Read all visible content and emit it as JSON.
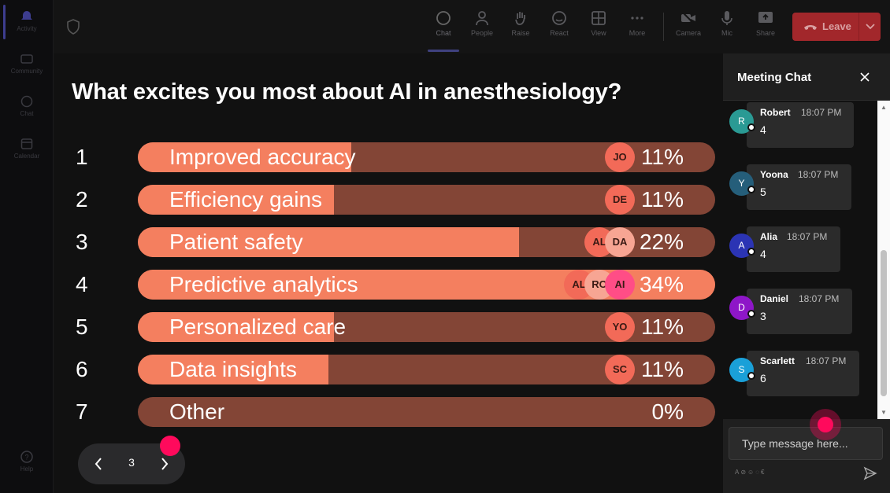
{
  "rail": {
    "items": [
      {
        "label": "Activity",
        "icon": "bell-icon"
      },
      {
        "label": "Community",
        "icon": "community-icon"
      },
      {
        "label": "Chat",
        "icon": "chat-icon"
      },
      {
        "label": "Calendar",
        "icon": "calendar-icon"
      }
    ],
    "help": {
      "label": "Help",
      "icon": "help-icon"
    }
  },
  "toolbar": {
    "chat": "Chat",
    "people": "People",
    "raise": "Raise",
    "react": "React",
    "view": "View",
    "more": "More",
    "camera": "Camera",
    "mic": "Mic",
    "share": "Share",
    "leave": "Leave"
  },
  "poll": {
    "question": "What excites you most about AI in anesthesiology?",
    "options": [
      {
        "num": "1",
        "label": "Improved accuracy",
        "fill": 0.37,
        "pct": "11%",
        "voters": [
          "JO"
        ]
      },
      {
        "num": "2",
        "label": "Efficiency gains",
        "fill": 0.34,
        "pct": "11%",
        "voters": [
          "DE"
        ]
      },
      {
        "num": "3",
        "label": "Patient safety",
        "fill": 0.66,
        "pct": "22%",
        "voters": [
          "AL",
          "DA"
        ]
      },
      {
        "num": "4",
        "label": "Predictive analytics",
        "fill": 1.0,
        "pct": "34%",
        "voters": [
          "AL",
          "RO",
          "AI"
        ]
      },
      {
        "num": "5",
        "label": "Personalized care",
        "fill": 0.34,
        "pct": "11%",
        "voters": [
          "YO"
        ]
      },
      {
        "num": "6",
        "label": "Data insights",
        "fill": 0.33,
        "pct": "11%",
        "voters": [
          "SC"
        ]
      },
      {
        "num": "7",
        "label": "Other",
        "fill": 0.0,
        "pct": "0%",
        "voters": []
      }
    ],
    "colors": {
      "fill": "#f47f5f",
      "track": "#834536"
    }
  },
  "pager": {
    "page": "3"
  },
  "chat": {
    "title": "Meeting Chat",
    "messages": [
      {
        "name": "Robert",
        "initial": "R",
        "time": "18:07 PM",
        "text": "4",
        "color": "#2a9a94"
      },
      {
        "name": "Yoona",
        "initial": "Y",
        "time": "18:07 PM",
        "text": "5",
        "color": "#255e7a"
      },
      {
        "name": "Alia",
        "initial": "A",
        "time": "18:07 PM",
        "text": "4",
        "color": "#2b34b4"
      },
      {
        "name": "Daniel",
        "initial": "D",
        "time": "18:07 PM",
        "text": "3",
        "color": "#8e16c8"
      },
      {
        "name": "Scarlett",
        "initial": "S",
        "time": "18:07 PM",
        "text": "6",
        "color": "#1aa0d8"
      }
    ],
    "compose_placeholder": "Type message here..."
  }
}
